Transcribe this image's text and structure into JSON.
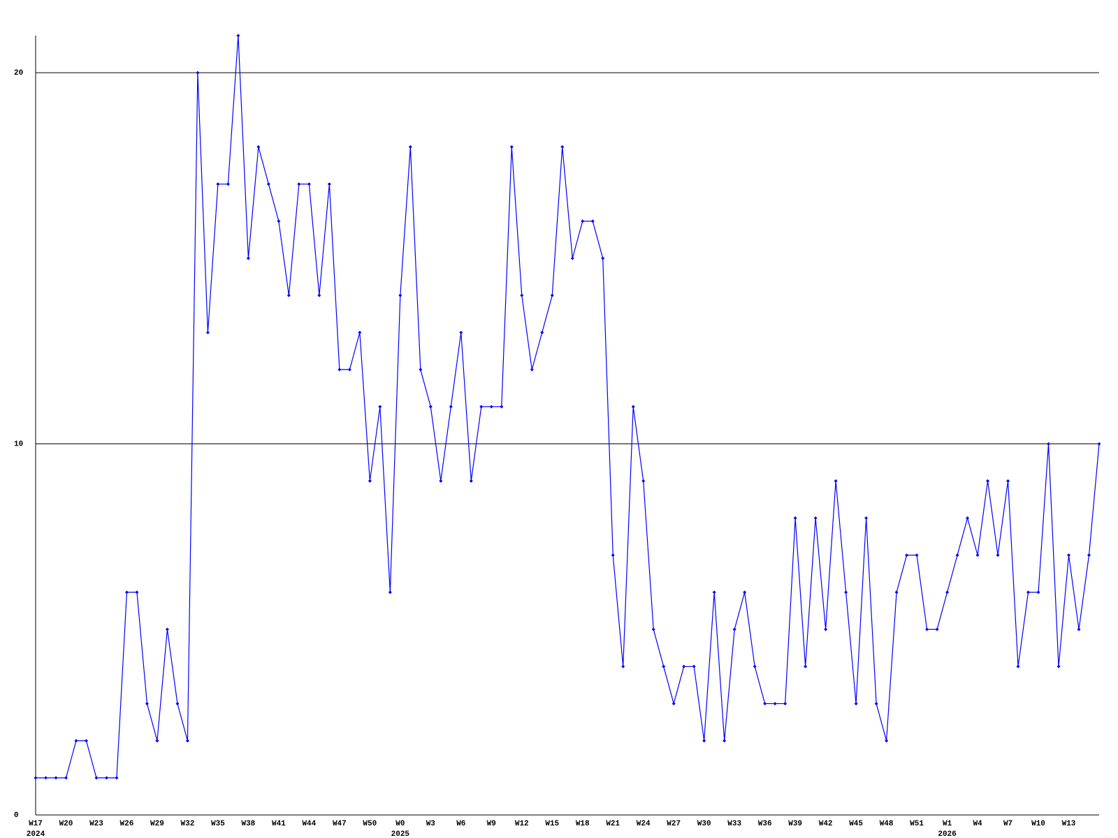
{
  "chart_data": {
    "type": "line",
    "categories": [
      "W17",
      null,
      null,
      "W20",
      null,
      null,
      "W23",
      null,
      null,
      "W26",
      null,
      null,
      "W29",
      null,
      null,
      "W32",
      null,
      null,
      "W35",
      null,
      null,
      "W38",
      null,
      null,
      "W41",
      null,
      null,
      "W44",
      null,
      null,
      "W47",
      null,
      null,
      "W50",
      null,
      null,
      "W0",
      null,
      null,
      "W3",
      null,
      null,
      "W6",
      null,
      null,
      "W9",
      null,
      null,
      "W12",
      null,
      null,
      "W15",
      null,
      null,
      "W18",
      null,
      null,
      "W21",
      null,
      null,
      "W24",
      null,
      null,
      "W27",
      null,
      null,
      "W30",
      null,
      null,
      "W33",
      null,
      null,
      "W36",
      null,
      null,
      "W39",
      null,
      null,
      "W42",
      null,
      null,
      "W45",
      null,
      null,
      "W48",
      null,
      null,
      "W51",
      null,
      null,
      "W1",
      null,
      null,
      "W4",
      null,
      null,
      "W7",
      null,
      null,
      "W10",
      null,
      null,
      "W13",
      null,
      null,
      null
    ],
    "year_labels": [
      "2024",
      null,
      null,
      null,
      null,
      null,
      null,
      null,
      null,
      null,
      null,
      null,
      null,
      null,
      null,
      null,
      null,
      null,
      null,
      null,
      null,
      null,
      null,
      null,
      null,
      null,
      null,
      null,
      null,
      null,
      null,
      null,
      null,
      null,
      null,
      null,
      "2025",
      null,
      null,
      null,
      null,
      null,
      null,
      null,
      null,
      null,
      null,
      null,
      null,
      null,
      null,
      null,
      null,
      null,
      null,
      null,
      null,
      null,
      null,
      null,
      null,
      null,
      null,
      null,
      null,
      null,
      null,
      null,
      null,
      null,
      null,
      null,
      null,
      null,
      null,
      null,
      null,
      null,
      null,
      null,
      null,
      null,
      null,
      null,
      null,
      null,
      null,
      null,
      null,
      null,
      "2026",
      null,
      null,
      null,
      null,
      null,
      null,
      null,
      null,
      null,
      null,
      null,
      null,
      null,
      null,
      null
    ],
    "series": [
      {
        "color": "#0000ff",
        "values": [
          1,
          1,
          1,
          1,
          2,
          2,
          1,
          1,
          1,
          6,
          6,
          3,
          2,
          5,
          3,
          2,
          20,
          13,
          17,
          17,
          21,
          15,
          18,
          17,
          16,
          14,
          17,
          17,
          14,
          17,
          12,
          12,
          13,
          9,
          11,
          6,
          14,
          18,
          12,
          11,
          9,
          11,
          13,
          9,
          11,
          11,
          11,
          18,
          14,
          12,
          13,
          14,
          18,
          15,
          16,
          16,
          15,
          7,
          4,
          11,
          9,
          5,
          4,
          3,
          4,
          4,
          2,
          6,
          2,
          5,
          6,
          4,
          3,
          3,
          3,
          8,
          4,
          8,
          5,
          9,
          6,
          3,
          8,
          3,
          2,
          6,
          7,
          7,
          5,
          5,
          6,
          7,
          8,
          7,
          9,
          7,
          9,
          4,
          6,
          6,
          10,
          4,
          7,
          5,
          7,
          10
        ]
      }
    ],
    "ylim": [
      0,
      21
    ],
    "yticks": [
      0,
      10,
      20
    ],
    "grid": true
  }
}
